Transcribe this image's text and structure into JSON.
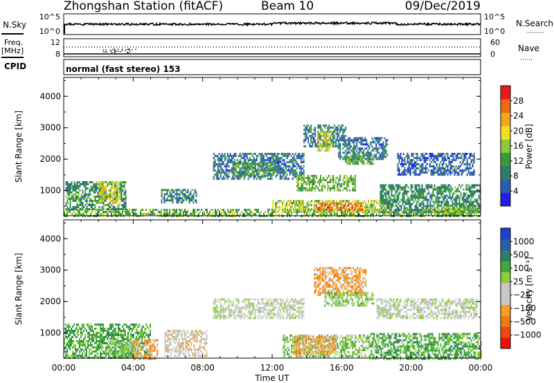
{
  "header": {
    "station": "Zhongshan Station (fitACF)",
    "beam": "Beam 10",
    "date": "09/Dec/2019"
  },
  "strips": {
    "nsky_label": "N.Sky",
    "nsky_ticks": [
      "10^5",
      "10^0"
    ],
    "nsearch_label": "N.Search",
    "nsearch_ticks": [
      "10^5",
      "10^0"
    ],
    "freq_label": "Freq.",
    "freq_unit": "[MHz]",
    "freq_ticks": [
      "12",
      "8"
    ],
    "nave_label": "Nave",
    "nave_ticks": [
      "60",
      "0"
    ],
    "cpid_label": "CPID",
    "cpid_value": "normal (fast stereo) 153"
  },
  "colors": {
    "power_scale": [
      "#1f1fe8",
      "#2a5fb0",
      "#2e7f6a",
      "#3b9a3a",
      "#8cc93a",
      "#f0e020",
      "#f5a623",
      "#f06a10",
      "#e81c1c"
    ],
    "velocity_scale": [
      "#ee1010",
      "#f04a10",
      "#f27a10",
      "#f5a020",
      "#c8c8c8",
      "#c8c8c8",
      "#8ccf3a",
      "#3faa3a",
      "#2e7f6a",
      "#2a5fb0",
      "#1f3fd0"
    ]
  },
  "chart_data": [
    {
      "type": "heatmap",
      "name": "power",
      "ylabel": "Slant Range [km]",
      "y_ticks": [
        "1000",
        "2000",
        "3000",
        "4000"
      ],
      "ylim": [
        200,
        4600
      ],
      "xlim": [
        0,
        24
      ],
      "colorbar_label": "Power [dB]",
      "colorbar_ticks": [
        "4",
        "8",
        "12",
        "16",
        "20",
        "24",
        "28"
      ],
      "colorbar_range": [
        0,
        32
      ],
      "regions": [
        {
          "t0": 0.0,
          "t1": 24.0,
          "r0": 200,
          "r1": 420,
          "value": 14
        },
        {
          "t0": 0.1,
          "t1": 3.6,
          "r0": 400,
          "r1": 1300,
          "value": 11
        },
        {
          "t0": 2.0,
          "t1": 3.2,
          "r0": 600,
          "r1": 1300,
          "value": 18
        },
        {
          "t0": 5.6,
          "t1": 7.6,
          "r0": 650,
          "r1": 1050,
          "value": 9
        },
        {
          "t0": 8.6,
          "t1": 13.8,
          "r0": 1400,
          "r1": 2200,
          "value": 7
        },
        {
          "t0": 9.8,
          "t1": 12.2,
          "r0": 1500,
          "r1": 1900,
          "value": 12
        },
        {
          "t0": 12.0,
          "t1": 18.8,
          "r0": 350,
          "r1": 700,
          "value": 17
        },
        {
          "t0": 14.5,
          "t1": 17.2,
          "r0": 380,
          "r1": 620,
          "value": 26
        },
        {
          "t0": 13.4,
          "t1": 16.8,
          "r0": 1000,
          "r1": 1500,
          "value": 14
        },
        {
          "t0": 13.8,
          "t1": 16.2,
          "r0": 2400,
          "r1": 3100,
          "value": 8
        },
        {
          "t0": 14.6,
          "t1": 15.4,
          "r0": 2300,
          "r1": 2900,
          "value": 19
        },
        {
          "t0": 15.8,
          "t1": 18.6,
          "r0": 2000,
          "r1": 2700,
          "value": 7
        },
        {
          "t0": 16.2,
          "t1": 17.8,
          "r0": 1850,
          "r1": 2150,
          "value": 13
        },
        {
          "t0": 19.2,
          "t1": 23.6,
          "r0": 1500,
          "r1": 2200,
          "value": 6
        },
        {
          "t0": 18.2,
          "t1": 24.0,
          "r0": 300,
          "r1": 1200,
          "value": 10
        },
        {
          "t0": 21.0,
          "t1": 24.0,
          "r0": 250,
          "r1": 500,
          "value": 16
        }
      ]
    },
    {
      "type": "heatmap",
      "name": "velocity",
      "ylabel": "Slant Range [km]",
      "y_ticks": [
        "1000",
        "2000",
        "3000",
        "4000"
      ],
      "ylim": [
        200,
        4600
      ],
      "xlim": [
        0,
        24
      ],
      "x_ticks": [
        "00:00",
        "04:00",
        "08:00",
        "12:00",
        "16:00",
        "20:00",
        "00:00"
      ],
      "xlabel": "Time UT",
      "colorbar_label": "Velocity [m s⁻¹]",
      "colorbar_ticks": [
        "1000",
        "500",
        "100",
        "25",
        "−25",
        "−100",
        "−500",
        "−1000"
      ],
      "regions": [
        {
          "t0": 0.0,
          "t1": 5.0,
          "r0": 200,
          "r1": 1300,
          "value": 2
        },
        {
          "t0": 2.6,
          "t1": 4.2,
          "r0": 250,
          "r1": 800,
          "value": 1
        },
        {
          "t0": 4.0,
          "t1": 5.4,
          "r0": 200,
          "r1": 800,
          "value": -2
        },
        {
          "t0": 5.8,
          "t1": 8.2,
          "r0": 300,
          "r1": 1100,
          "value": -1
        },
        {
          "t0": 8.6,
          "t1": 13.8,
          "r0": 1450,
          "r1": 2100,
          "value": 0
        },
        {
          "t0": 12.6,
          "t1": 17.6,
          "r0": 250,
          "r1": 950,
          "value": 1
        },
        {
          "t0": 13.2,
          "t1": 15.6,
          "r0": 350,
          "r1": 900,
          "value": -2
        },
        {
          "t0": 14.4,
          "t1": 17.4,
          "r0": 2200,
          "r1": 3100,
          "value": -2
        },
        {
          "t0": 15.0,
          "t1": 17.8,
          "r0": 1850,
          "r1": 2300,
          "value": 1
        },
        {
          "t0": 18.0,
          "t1": 23.8,
          "r0": 1500,
          "r1": 2100,
          "value": 0
        },
        {
          "t0": 17.6,
          "t1": 24.0,
          "r0": 200,
          "r1": 1000,
          "value": 2
        }
      ]
    }
  ]
}
